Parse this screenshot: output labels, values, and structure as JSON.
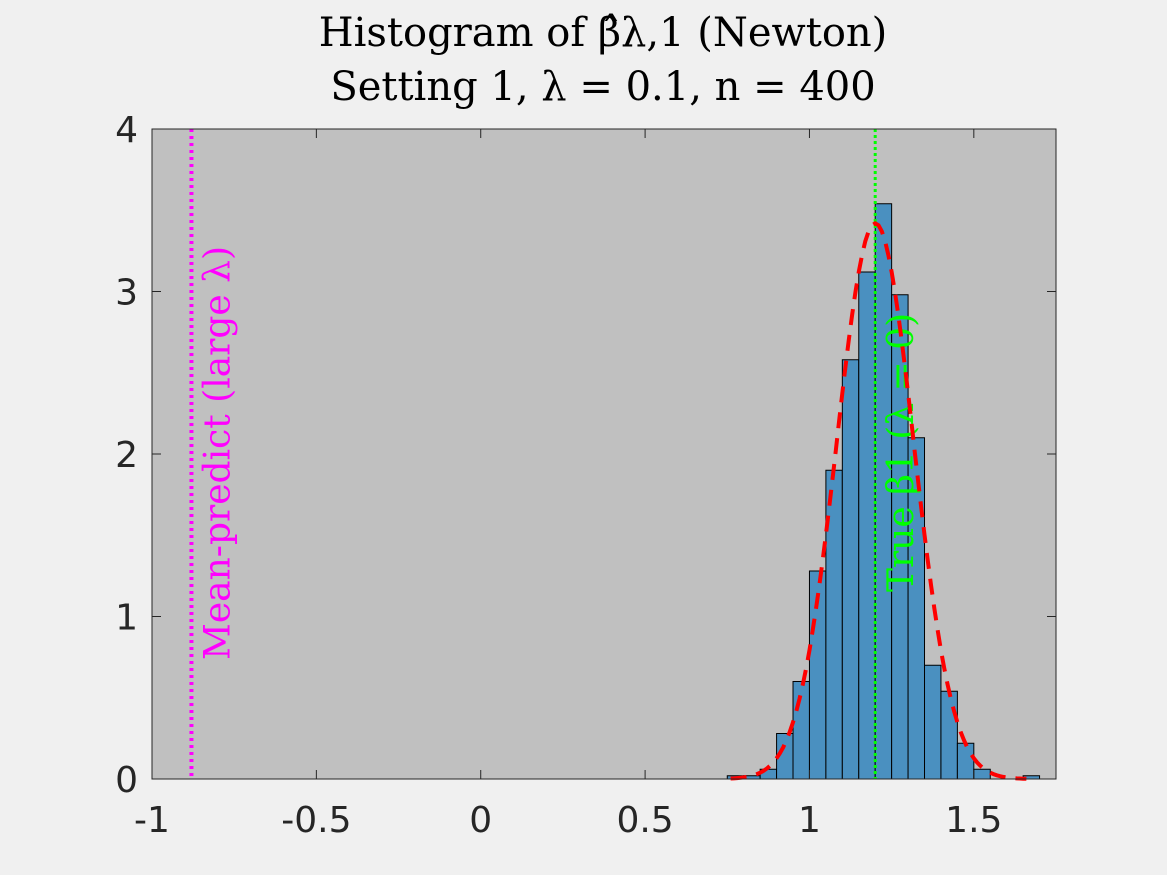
{
  "chart_data": {
    "type": "bar",
    "title_line1": "Histogram of β̂λ,1 (Newton)",
    "title_line2": "Setting 1, λ = 0.1, n = 400",
    "xlim": [
      -1,
      1.75
    ],
    "ylim": [
      0,
      4
    ],
    "xticks": [
      -1,
      -0.5,
      0,
      0.5,
      1,
      1.5
    ],
    "xtick_labels": [
      "-1",
      "-0.5",
      "0",
      "0.5",
      "1",
      "1.5"
    ],
    "yticks": [
      0,
      1,
      2,
      3,
      4
    ],
    "ytick_labels": [
      "0",
      "1",
      "2",
      "3",
      "4"
    ],
    "grid": false,
    "bin_width": 0.05,
    "bins": [
      {
        "x0": 0.75,
        "value": 0.02
      },
      {
        "x0": 0.8,
        "value": 0.02
      },
      {
        "x0": 0.85,
        "value": 0.06
      },
      {
        "x0": 0.9,
        "value": 0.28
      },
      {
        "x0": 0.95,
        "value": 0.6
      },
      {
        "x0": 1.0,
        "value": 1.28
      },
      {
        "x0": 1.05,
        "value": 1.9
      },
      {
        "x0": 1.1,
        "value": 2.58
      },
      {
        "x0": 1.15,
        "value": 3.12
      },
      {
        "x0": 1.2,
        "value": 3.54
      },
      {
        "x0": 1.25,
        "value": 2.98
      },
      {
        "x0": 1.3,
        "value": 2.1
      },
      {
        "x0": 1.35,
        "value": 0.7
      },
      {
        "x0": 1.4,
        "value": 0.54
      },
      {
        "x0": 1.45,
        "value": 0.22
      },
      {
        "x0": 1.5,
        "value": 0.06
      },
      {
        "x0": 1.65,
        "value": 0.02
      }
    ],
    "normal_fit": {
      "mean": 1.2,
      "sd": 0.117,
      "xmin": 0.76,
      "xmax": 1.66
    },
    "annotations": [
      {
        "x": -0.88,
        "label": "Mean-predict (large λ)",
        "color": "#ff00ff",
        "style": "dotted"
      },
      {
        "x": 1.2,
        "label": "True β1 (λ = 0)",
        "color": "#00ff00",
        "style": "dotted"
      }
    ],
    "colors": {
      "bar_fill": "#4a90c0",
      "bar_stroke": "#000000",
      "plot_bg": "#c0c0c0",
      "figure_bg": "#f0f0f0",
      "fit_line": "#ff0000"
    }
  }
}
